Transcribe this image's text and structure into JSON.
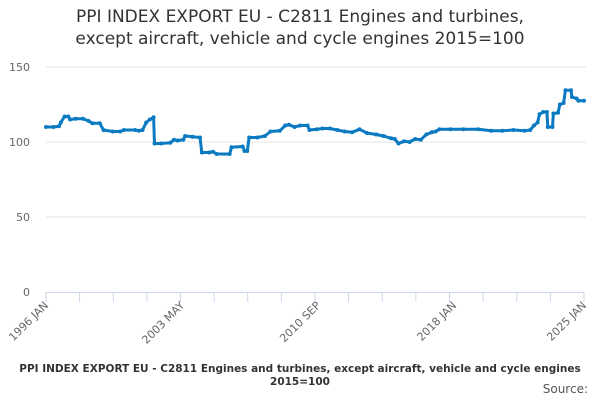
{
  "chart_data": {
    "type": "line",
    "title_line1": "PPI INDEX EXPORT EU - C2811 Engines and turbines,",
    "title_line2": "except aircraft, vehicle and cycle engines 2015=100",
    "xlabel": "",
    "ylabel": "",
    "ylim": [
      0,
      150
    ],
    "xlim": [
      1996.0,
      2025.0
    ],
    "yticks": [
      0,
      50,
      100,
      150
    ],
    "xticks": [
      {
        "value": 1996.0,
        "label": "1996 JAN"
      },
      {
        "value": 2003.33,
        "label": "2003 MAY"
      },
      {
        "value": 2010.67,
        "label": "2010 SEP"
      },
      {
        "value": 2018.0,
        "label": "2018 JAN"
      },
      {
        "value": 2025.0,
        "label": "2025 JAN"
      }
    ],
    "grid": true,
    "legend": "none",
    "color": "#0a7bc2",
    "series": [
      {
        "name": "PPI INDEX EXPORT EU - C2811 Engines and turbines, except aircraft, vehicle and cycle engines 2015=100",
        "points": [
          [
            1996.0,
            110
          ],
          [
            1996.4,
            110
          ],
          [
            1996.7,
            110.5
          ],
          [
            1996.8,
            113
          ],
          [
            1997.0,
            117
          ],
          [
            1997.2,
            117
          ],
          [
            1997.3,
            115
          ],
          [
            1997.6,
            115.5
          ],
          [
            1998.0,
            115.5
          ],
          [
            1998.3,
            114
          ],
          [
            1998.5,
            112.5
          ],
          [
            1998.9,
            112.5
          ],
          [
            1999.1,
            108
          ],
          [
            1999.6,
            107
          ],
          [
            2000.0,
            107
          ],
          [
            2000.2,
            108
          ],
          [
            2000.8,
            108
          ],
          [
            2001.0,
            107.5
          ],
          [
            2001.2,
            108
          ],
          [
            2001.4,
            113
          ],
          [
            2001.6,
            115
          ],
          [
            2001.8,
            116.5
          ],
          [
            2001.85,
            99
          ],
          [
            2002.2,
            99
          ],
          [
            2002.7,
            99.5
          ],
          [
            2002.9,
            101.5
          ],
          [
            2003.1,
            101
          ],
          [
            2003.4,
            101.5
          ],
          [
            2003.5,
            104
          ],
          [
            2003.9,
            103.5
          ],
          [
            2004.3,
            103
          ],
          [
            2004.4,
            93
          ],
          [
            2004.8,
            93
          ],
          [
            2005.0,
            93.5
          ],
          [
            2005.2,
            92
          ],
          [
            2005.9,
            92
          ],
          [
            2006.0,
            96.5
          ],
          [
            2006.6,
            97
          ],
          [
            2006.7,
            94
          ],
          [
            2006.85,
            94
          ],
          [
            2006.95,
            103
          ],
          [
            2007.4,
            103
          ],
          [
            2007.8,
            104
          ],
          [
            2008.1,
            107
          ],
          [
            2008.6,
            107.5
          ],
          [
            2008.9,
            111
          ],
          [
            2009.1,
            111.5
          ],
          [
            2009.4,
            110
          ],
          [
            2009.7,
            111
          ],
          [
            2010.1,
            111
          ],
          [
            2010.2,
            108
          ],
          [
            2010.6,
            108.5
          ],
          [
            2010.9,
            109
          ],
          [
            2011.3,
            109
          ],
          [
            2011.7,
            108
          ],
          [
            2012.1,
            107
          ],
          [
            2012.5,
            106.5
          ],
          [
            2012.9,
            108.5
          ],
          [
            2013.3,
            106
          ],
          [
            2013.8,
            105
          ],
          [
            2014.2,
            104
          ],
          [
            2014.6,
            102.5
          ],
          [
            2014.8,
            102
          ],
          [
            2015.0,
            99
          ],
          [
            2015.3,
            100.5
          ],
          [
            2015.6,
            100
          ],
          [
            2015.9,
            102
          ],
          [
            2016.2,
            101.5
          ],
          [
            2016.5,
            105
          ],
          [
            2016.8,
            106.5
          ],
          [
            2017.0,
            107
          ],
          [
            2017.2,
            108.5
          ],
          [
            2017.8,
            108.5
          ],
          [
            2018.5,
            108.5
          ],
          [
            2019.3,
            108.5
          ],
          [
            2020.0,
            107.5
          ],
          [
            2020.6,
            107.5
          ],
          [
            2021.2,
            108
          ],
          [
            2021.8,
            107.5
          ],
          [
            2022.1,
            108
          ],
          [
            2022.3,
            111
          ],
          [
            2022.5,
            113
          ],
          [
            2022.6,
            118.5
          ],
          [
            2022.8,
            120
          ],
          [
            2023.0,
            120
          ],
          [
            2023.05,
            110
          ],
          [
            2023.3,
            110
          ],
          [
            2023.35,
            119
          ],
          [
            2023.6,
            119.5
          ],
          [
            2023.7,
            125
          ],
          [
            2023.9,
            126
          ],
          [
            2024.0,
            134.5
          ],
          [
            2024.3,
            134.5
          ],
          [
            2024.35,
            130
          ],
          [
            2024.6,
            129
          ],
          [
            2024.7,
            127.5
          ],
          [
            2025.0,
            127.5
          ]
        ]
      }
    ]
  },
  "footer": {
    "caption": "PPI INDEX EXPORT EU - C2811 Engines and turbines, except aircraft, vehicle and cycle engines 2015=100",
    "source": "Source:"
  }
}
